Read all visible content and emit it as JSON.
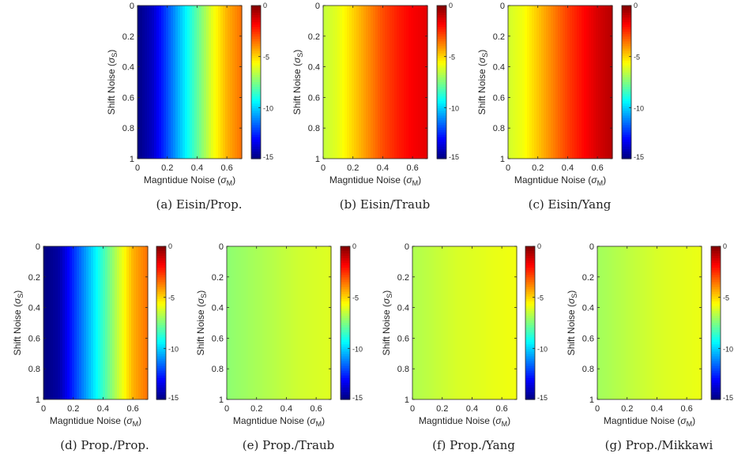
{
  "chart_data": [
    {
      "type": "heatmap",
      "caption": "(a) Eisin/Prop.",
      "xlabel": "Magntidue Noise",
      "xlabel_symbol": "σ",
      "xlabel_subscript": "M",
      "ylabel": "Shift Noise",
      "ylabel_symbol": "σ",
      "ylabel_subscript": "S",
      "xlim": [
        0,
        0.7
      ],
      "ylim": [
        0,
        1
      ],
      "y_reversed": true,
      "x_ticks": [
        "0",
        "0.2",
        "0.4",
        "0.6"
      ],
      "x_tick_values": [
        0,
        0.2,
        0.4,
        0.6
      ],
      "y_ticks": [
        "0",
        "0.2",
        "0.4",
        "0.6",
        "0.8",
        "1"
      ],
      "y_tick_values": [
        0,
        0.2,
        0.4,
        0.6,
        0.8,
        1
      ],
      "colorbar": {
        "min": -15,
        "max": 0,
        "ticks": [
          "0",
          "-5",
          "-10",
          "-15"
        ],
        "tick_values": [
          0,
          -5,
          -10,
          -15
        ],
        "colormap": "jet"
      },
      "value_at_x": {
        "x": [
          0,
          0.1,
          0.2,
          0.3,
          0.4,
          0.5,
          0.6,
          0.7
        ],
        "values": [
          -15,
          -14,
          -12,
          -10,
          -8,
          -6,
          -4.5,
          -3.5
        ]
      }
    },
    {
      "type": "heatmap",
      "caption": "(b) Eisin/Traub",
      "xlabel": "Magntidue Noise",
      "xlabel_symbol": "σ",
      "xlabel_subscript": "M",
      "ylabel": "Shift Noise",
      "ylabel_symbol": "σ",
      "ylabel_subscript": "S",
      "xlim": [
        0,
        0.7
      ],
      "ylim": [
        0,
        1
      ],
      "y_reversed": true,
      "x_ticks": [
        "0",
        "0.2",
        "0.4",
        "0.6"
      ],
      "x_tick_values": [
        0,
        0.2,
        0.4,
        0.6
      ],
      "y_ticks": [
        "0",
        "0.2",
        "0.4",
        "0.6",
        "0.8",
        "1"
      ],
      "y_tick_values": [
        0,
        0.2,
        0.4,
        0.6,
        0.8,
        1
      ],
      "colorbar": {
        "min": -15,
        "max": 0,
        "ticks": [
          "0",
          "-5",
          "-10",
          "-15"
        ],
        "tick_values": [
          0,
          -5,
          -10,
          -15
        ],
        "colormap": "jet"
      },
      "value_at_x": {
        "x": [
          0,
          0.1,
          0.2,
          0.3,
          0.4,
          0.5,
          0.6,
          0.7
        ],
        "values": [
          -6.5,
          -6,
          -5,
          -4,
          -3,
          -2.3,
          -1.8,
          -1.5
        ]
      }
    },
    {
      "type": "heatmap",
      "caption": "(c) Eisin/Yang",
      "xlabel": "Magntidue Noise",
      "xlabel_symbol": "σ",
      "xlabel_subscript": "M",
      "ylabel": "Shift Noise",
      "ylabel_symbol": "σ",
      "ylabel_subscript": "S",
      "xlim": [
        0,
        0.7
      ],
      "ylim": [
        0,
        1
      ],
      "y_reversed": true,
      "x_ticks": [
        "0",
        "0.2",
        "0.4",
        "0.6"
      ],
      "x_tick_values": [
        0,
        0.2,
        0.4,
        0.6
      ],
      "y_ticks": [
        "0",
        "0.2",
        "0.4",
        "0.6",
        "0.8",
        "1"
      ],
      "y_tick_values": [
        0,
        0.2,
        0.4,
        0.6,
        0.8,
        1
      ],
      "colorbar": {
        "min": -15,
        "max": 0,
        "ticks": [
          "0",
          "-5",
          "-10",
          "-15"
        ],
        "tick_values": [
          0,
          -5,
          -10,
          -15
        ],
        "colormap": "jet"
      },
      "value_at_x": {
        "x": [
          0,
          0.1,
          0.2,
          0.3,
          0.4,
          0.5,
          0.6,
          0.7
        ],
        "values": [
          -6.3,
          -5.8,
          -4.8,
          -3.8,
          -2.8,
          -2,
          -1.3,
          -0.8
        ]
      }
    },
    {
      "type": "heatmap",
      "caption": "(d) Prop./Prop.",
      "xlabel": "Magntidue Noise",
      "xlabel_symbol": "σ",
      "xlabel_subscript": "M",
      "ylabel": "Shift Noise",
      "ylabel_symbol": "σ",
      "ylabel_subscript": "S",
      "xlim": [
        0,
        0.7
      ],
      "ylim": [
        0,
        1
      ],
      "y_reversed": true,
      "x_ticks": [
        "0",
        "0.2",
        "0.4",
        "0.6"
      ],
      "x_tick_values": [
        0,
        0.2,
        0.4,
        0.6
      ],
      "y_ticks": [
        "0",
        "0.2",
        "0.4",
        "0.6",
        "0.8",
        "1"
      ],
      "y_tick_values": [
        0,
        0.2,
        0.4,
        0.6,
        0.8,
        1
      ],
      "colorbar": {
        "min": -15,
        "max": 0,
        "ticks": [
          "0",
          "-5",
          "-10",
          "-15"
        ],
        "tick_values": [
          0,
          -5,
          -10,
          -15
        ],
        "colormap": "jet"
      },
      "value_at_x": {
        "x": [
          0,
          0.1,
          0.2,
          0.3,
          0.4,
          0.5,
          0.6,
          0.7
        ],
        "values": [
          -15,
          -14.5,
          -12.5,
          -10.5,
          -8.5,
          -6.5,
          -4.5,
          -3.5
        ]
      }
    },
    {
      "type": "heatmap",
      "caption": "(e) Prop./Traub",
      "xlabel": "Magntidue Noise",
      "xlabel_symbol": "σ",
      "xlabel_subscript": "M",
      "ylabel": "Shift Noise",
      "ylabel_symbol": "σ",
      "ylabel_subscript": "S",
      "xlim": [
        0,
        0.7
      ],
      "ylim": [
        0,
        1
      ],
      "y_reversed": true,
      "x_ticks": [
        "0",
        "0.2",
        "0.4",
        "0.6"
      ],
      "x_tick_values": [
        0,
        0.2,
        0.4,
        0.6
      ],
      "y_ticks": [
        "0",
        "0.2",
        "0.4",
        "0.6",
        "0.8",
        "1"
      ],
      "y_tick_values": [
        0,
        0.2,
        0.4,
        0.6,
        0.8,
        1
      ],
      "colorbar": {
        "min": -15,
        "max": 0,
        "ticks": [
          "0",
          "-5",
          "-10",
          "-15"
        ],
        "tick_values": [
          0,
          -5,
          -10,
          -15
        ],
        "colormap": "jet"
      },
      "value_at_x": {
        "x": [
          0,
          0.1,
          0.2,
          0.3,
          0.4,
          0.5,
          0.6,
          0.7
        ],
        "values": [
          -7.3,
          -7.1,
          -6.9,
          -6.7,
          -6.5,
          -6.3,
          -6.2,
          -6.1
        ]
      }
    },
    {
      "type": "heatmap",
      "caption": "(f) Prop./Yang",
      "xlabel": "Magntidue Noise",
      "xlabel_symbol": "σ",
      "xlabel_subscript": "M",
      "ylabel": "Shift Noise",
      "ylabel_symbol": "σ",
      "ylabel_subscript": "S",
      "xlim": [
        0,
        0.7
      ],
      "ylim": [
        0,
        1
      ],
      "y_reversed": true,
      "x_ticks": [
        "0",
        "0.2",
        "0.4",
        "0.6"
      ],
      "x_tick_values": [
        0,
        0.2,
        0.4,
        0.6
      ],
      "y_ticks": [
        "0",
        "0.2",
        "0.4",
        "0.6",
        "0.8",
        "1"
      ],
      "y_tick_values": [
        0,
        0.2,
        0.4,
        0.6,
        0.8,
        1
      ],
      "colorbar": {
        "min": -15,
        "max": 0,
        "ticks": [
          "0",
          "-5",
          "-10",
          "-15"
        ],
        "tick_values": [
          0,
          -5,
          -10,
          -15
        ],
        "colormap": "jet"
      },
      "value_at_x": {
        "x": [
          0,
          0.1,
          0.2,
          0.3,
          0.4,
          0.5,
          0.6,
          0.7
        ],
        "values": [
          -6.8,
          -6.6,
          -6.4,
          -6.2,
          -6.1,
          -6,
          -5.9,
          -5.8
        ]
      }
    },
    {
      "type": "heatmap",
      "caption": "(g) Prop./Mikkawi",
      "xlabel": "Magntidue Noise",
      "xlabel_symbol": "σ",
      "xlabel_subscript": "M",
      "ylabel": "Shift Noise",
      "ylabel_symbol": "σ",
      "ylabel_subscript": "S",
      "xlim": [
        0,
        0.7
      ],
      "ylim": [
        0,
        1
      ],
      "y_reversed": true,
      "x_ticks": [
        "0",
        "0.2",
        "0.4",
        "0.6"
      ],
      "x_tick_values": [
        0,
        0.2,
        0.4,
        0.6
      ],
      "y_ticks": [
        "0",
        "0.2",
        "0.4",
        "0.6",
        "0.8",
        "1"
      ],
      "y_tick_values": [
        0,
        0.2,
        0.4,
        0.6,
        0.8,
        1
      ],
      "colorbar": {
        "min": -15,
        "max": 0,
        "ticks": [
          "0",
          "-5",
          "-10",
          "-15"
        ],
        "tick_values": [
          0,
          -5,
          -10,
          -15
        ],
        "colormap": "jet"
      },
      "value_at_x": {
        "x": [
          0,
          0.1,
          0.2,
          0.3,
          0.4,
          0.5,
          0.6,
          0.7
        ],
        "values": [
          -7,
          -6.8,
          -6.6,
          -6.4,
          -6.2,
          -6.1,
          -6,
          -5.9
        ]
      }
    }
  ]
}
